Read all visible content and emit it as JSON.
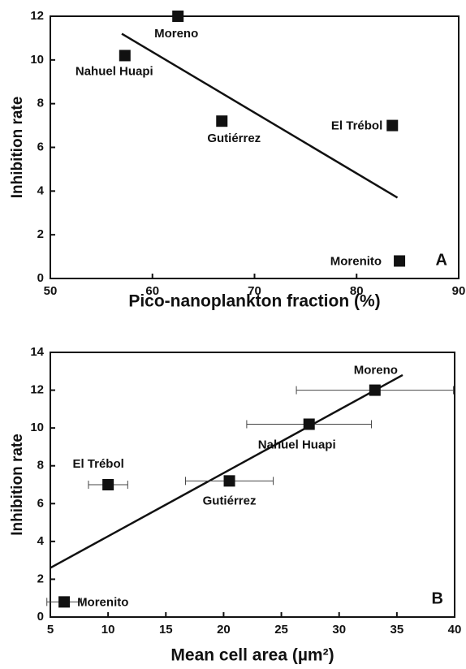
{
  "chart_data": [
    {
      "type": "scatter",
      "panel": "A",
      "x_label": "Pico-nanoplankton fraction (%)",
      "y_label": "Inhibition rate",
      "labels": [
        "Moreno",
        "Nahuel Huapi",
        "Gutiérrez",
        "El Trébol",
        "Morenito"
      ],
      "x": [
        62.5,
        57.3,
        66.8,
        83.5,
        84.2
      ],
      "values": [
        12,
        10.2,
        7.2,
        7.0,
        0.8
      ],
      "trend_line": {
        "x": [
          57,
          84
        ],
        "y": [
          11.2,
          3.7
        ]
      },
      "xlim": [
        50,
        90
      ],
      "xticks": [
        50,
        60,
        70,
        80,
        90
      ],
      "ylim": [
        0,
        12
      ],
      "yticks": [
        0,
        2,
        4,
        6,
        8,
        10,
        12
      ],
      "color": "#111111"
    },
    {
      "type": "scatter",
      "panel": "B",
      "x_label": "Mean cell area (µm²)",
      "y_label": "Inhibition rate",
      "labels": [
        "Morenito",
        "El Trébol",
        "Gutiérrez",
        "Nahuel Huapi",
        "Moreno"
      ],
      "x": [
        6.2,
        10,
        20.5,
        27.4,
        33.1
      ],
      "x_errors": [
        1.5,
        1.7,
        3.8,
        5.4,
        6.8
      ],
      "values": [
        0.8,
        7.0,
        7.2,
        10.2,
        12
      ],
      "trend_line": {
        "x": [
          5,
          35.5
        ],
        "y": [
          2.6,
          12.8
        ]
      },
      "xlim": [
        5,
        40
      ],
      "xticks": [
        5,
        10,
        15,
        20,
        25,
        30,
        35,
        40
      ],
      "ylim": [
        0,
        14
      ],
      "yticks": [
        0,
        2,
        4,
        6,
        8,
        10,
        12,
        14
      ],
      "color": "#111111"
    }
  ]
}
